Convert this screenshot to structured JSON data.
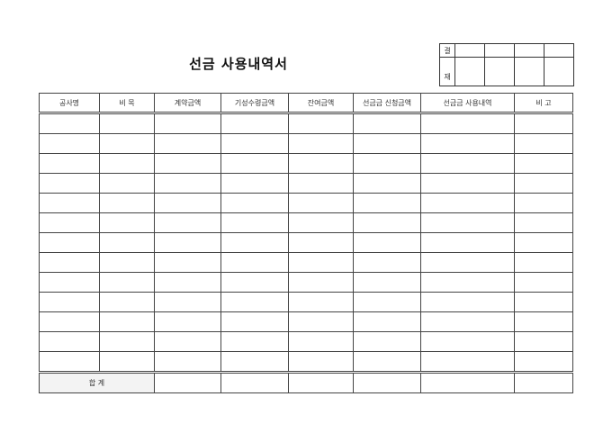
{
  "title": "선금 사용내역서",
  "approval": {
    "label_top": "결",
    "label_bottom": "재"
  },
  "columns": [
    "공사명",
    "비   목",
    "계약금액",
    "기성수령금액",
    "잔여금액",
    "선금금 신청금액",
    "선금금 사용내역",
    "비   고"
  ],
  "total_label": "합   계"
}
